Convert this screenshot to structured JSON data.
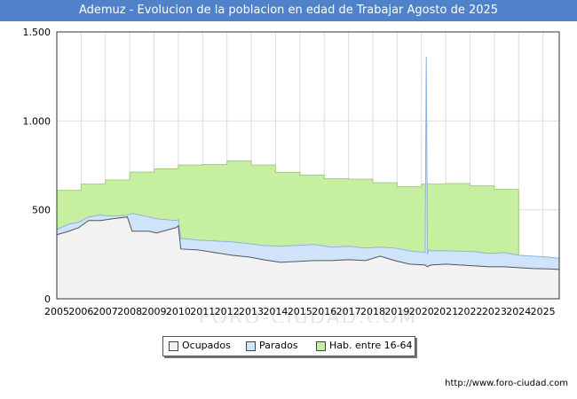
{
  "header": {
    "title": "Ademuz - Evolucion de la poblacion en edad de Trabajar Agosto de 2025"
  },
  "legend": {
    "items": [
      {
        "label": "Ocupados",
        "color": "#f2f2f2"
      },
      {
        "label": "Parados",
        "color": "#cfe4fa"
      },
      {
        "label": "Hab. entre 16-64",
        "color": "#c6f0a0"
      }
    ]
  },
  "footer": {
    "source": "http://www.foro-ciudad.com"
  },
  "watermark": "FORO-CIUDAD.COM",
  "chart_data": {
    "type": "area",
    "title": "Ademuz - Evolucion de la poblacion en edad de Trabajar Agosto de 2025",
    "xlabel": "",
    "ylabel": "",
    "xlim": [
      2005,
      2025.67
    ],
    "ylim": [
      0,
      1500
    ],
    "yticks": [
      0,
      500,
      1000,
      1500
    ],
    "ytick_labels": [
      "0",
      "500",
      "1.000",
      "1.500"
    ],
    "xticks": [
      2005,
      2006,
      2007,
      2008,
      2009,
      2010,
      2011,
      2012,
      2013,
      2014,
      2015,
      2016,
      2017,
      2018,
      2019,
      2020,
      2021,
      2022,
      2023,
      2024,
      2025
    ],
    "grid": true,
    "legend_position": "bottom",
    "colors": {
      "hab": "#c6f0a0",
      "parados": "#cfe4fa",
      "ocupados": "#f2f2f2",
      "line": "#555555"
    },
    "series": [
      {
        "name": "Hab. entre 16-64",
        "step": true,
        "years": [
          2005,
          2006,
          2007,
          2008,
          2009,
          2010,
          2011,
          2012,
          2013,
          2014,
          2015,
          2016,
          2017,
          2018,
          2019,
          2020,
          2021,
          2022,
          2023,
          2024
        ],
        "values": [
          610,
          645,
          668,
          712,
          730,
          752,
          755,
          775,
          752,
          710,
          695,
          675,
          672,
          652,
          630,
          645,
          648,
          635,
          615,
          0
        ]
      },
      {
        "name": "Parados",
        "note": "plotted as total of Ocupados + Parados",
        "x": [
          2005.0,
          2005.5,
          2005.9,
          2006.3,
          2006.8,
          2007.3,
          2007.9,
          2008.1,
          2008.8,
          2009.1,
          2009.9,
          2010.0,
          2010.1,
          2010.8,
          2011.5,
          2012.2,
          2012.9,
          2013.5,
          2014.2,
          2014.9,
          2015.6,
          2016.3,
          2017.0,
          2017.7,
          2018.3,
          2018.9,
          2019.5,
          2020.15,
          2020.2,
          2020.25,
          2020.3,
          2020.4,
          2021.0,
          2021.6,
          2022.2,
          2022.8,
          2023.4,
          2024.0,
          2024.6,
          2025.2,
          2025.67
        ],
        "values": [
          390,
          420,
          430,
          460,
          470,
          465,
          470,
          480,
          460,
          450,
          440,
          445,
          340,
          330,
          325,
          320,
          310,
          300,
          295,
          300,
          305,
          290,
          295,
          285,
          290,
          285,
          270,
          260,
          1360,
          250,
          275,
          270,
          270,
          268,
          265,
          255,
          260,
          245,
          240,
          235,
          228
        ]
      },
      {
        "name": "Ocupados",
        "x": [
          2005.0,
          2005.5,
          2005.9,
          2006.3,
          2006.8,
          2007.3,
          2007.9,
          2008.1,
          2008.8,
          2009.1,
          2009.9,
          2010.0,
          2010.1,
          2010.8,
          2011.5,
          2012.2,
          2012.9,
          2013.5,
          2014.2,
          2014.9,
          2015.6,
          2016.3,
          2017.0,
          2017.7,
          2018.3,
          2018.9,
          2019.5,
          2020.15,
          2020.2,
          2020.25,
          2020.3,
          2020.4,
          2021.0,
          2021.6,
          2022.2,
          2022.8,
          2023.4,
          2024.0,
          2024.6,
          2025.2,
          2025.67
        ],
        "values": [
          360,
          380,
          400,
          440,
          440,
          450,
          460,
          380,
          380,
          370,
          400,
          410,
          280,
          275,
          260,
          245,
          235,
          220,
          205,
          210,
          215,
          215,
          220,
          215,
          240,
          215,
          195,
          190,
          185,
          180,
          185,
          190,
          195,
          190,
          185,
          180,
          180,
          175,
          170,
          168,
          165
        ]
      }
    ]
  }
}
